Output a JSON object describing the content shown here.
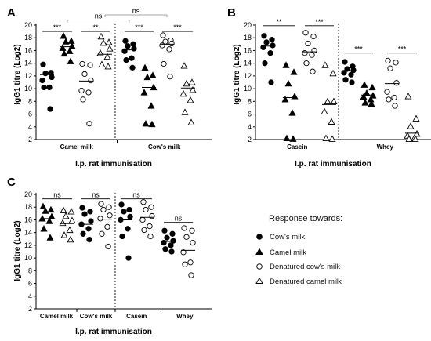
{
  "legend": {
    "title": "Response towards:",
    "items": [
      {
        "label": "Cow's milk",
        "marker": "circle-filled"
      },
      {
        "label": "Camel milk",
        "marker": "triangle-filled"
      },
      {
        "label": "Denatured cow's milk",
        "marker": "circle-open"
      },
      {
        "label": "Denatured camel milk",
        "marker": "triangle-open"
      }
    ]
  },
  "chart_data": [
    {
      "panel": "A",
      "type": "scatter",
      "ylabel": "IgG1 titre (Log2)",
      "xlabel": "I.p. rat immunisation",
      "ylim": [
        2,
        20
      ],
      "yticks": [
        2,
        4,
        6,
        8,
        10,
        12,
        14,
        16,
        18,
        20
      ],
      "groups": [
        {
          "label": "Camel milk",
          "start": 0,
          "end": 4
        },
        {
          "label": "Cow's milk",
          "start": 4,
          "end": 8
        }
      ],
      "divider_after": 4,
      "series": [
        {
          "marker": "circle-filled",
          "mean": 12.2,
          "values": [
            13.8,
            12.5,
            12.4,
            11.8,
            11.3,
            10.2,
            10.2,
            6.8
          ]
        },
        {
          "marker": "triangle-filled",
          "mean": 16.6,
          "values": [
            18.3,
            17.5,
            17.4,
            16.7,
            16.4,
            15.9,
            15.5,
            14.3
          ]
        },
        {
          "marker": "circle-open",
          "mean": 11.2,
          "values": [
            13.9,
            13.7,
            12.3,
            11.3,
            9.7,
            9.4,
            8.3,
            4.5
          ]
        },
        {
          "marker": "triangle-open",
          "mean": 15.4,
          "values": [
            18.2,
            17.3,
            17.2,
            16.3,
            15.6,
            15.0,
            13.8,
            13.5
          ]
        },
        {
          "marker": "circle-filled",
          "mean": 16.1,
          "values": [
            17.5,
            17.0,
            16.7,
            16.3,
            15.9,
            14.8,
            14.5,
            13.3
          ]
        },
        {
          "marker": "triangle-filled",
          "mean": 10.2,
          "values": [
            13.3,
            12.1,
            11.8,
            10.2,
            9.4,
            7.3,
            4.5,
            4.4
          ]
        },
        {
          "marker": "circle-open",
          "mean": 17.0,
          "values": [
            18.4,
            17.6,
            17.4,
            17.1,
            16.8,
            16.2,
            13.9,
            11.9
          ]
        },
        {
          "marker": "triangle-open",
          "mean": 10.1,
          "values": [
            13.6,
            11.0,
            10.8,
            9.8,
            9.2,
            8.2,
            6.3,
            4.7
          ]
        }
      ],
      "comparisons": [
        {
          "from": 0,
          "to": 1,
          "label": "***",
          "y": 19.0
        },
        {
          "from": 2,
          "to": 3,
          "label": "**",
          "y": 19.0
        },
        {
          "from": 4,
          "to": 5,
          "label": "***",
          "y": 19.0
        },
        {
          "from": 6,
          "to": 7,
          "label": "***",
          "y": 19.0
        },
        {
          "from": 1,
          "to": 4,
          "label": "ns",
          "y": 20.8
        },
        {
          "from": 3,
          "to": 6,
          "label": "ns",
          "y": 21.6
        }
      ]
    },
    {
      "panel": "B",
      "type": "scatter",
      "ylabel": "IgG1 titre (Log2)",
      "xlabel": "I.p. rat immunisation",
      "ylim": [
        2,
        20
      ],
      "yticks": [
        2,
        4,
        6,
        8,
        10,
        12,
        14,
        16,
        18,
        20
      ],
      "groups": [
        {
          "label": "Casein",
          "start": 0,
          "end": 4
        },
        {
          "label": "Whey",
          "start": 4,
          "end": 8
        }
      ],
      "divider_after": 4,
      "series": [
        {
          "marker": "circle-filled",
          "mean": 16.7,
          "values": [
            18.3,
            17.7,
            17.3,
            16.8,
            16.5,
            15.6,
            14.0,
            11.0
          ]
        },
        {
          "marker": "triangle-filled",
          "mean": 8.6,
          "values": [
            13.7,
            12.6,
            10.8,
            8.8,
            8.3,
            6.2,
            2.2,
            2.1
          ]
        },
        {
          "marker": "circle-open",
          "mean": 15.8,
          "values": [
            18.8,
            18.2,
            17.1,
            16.0,
            15.6,
            15.3,
            14.0,
            12.7
          ]
        },
        {
          "marker": "triangle-open",
          "mean": 7.5,
          "values": [
            13.7,
            12.4,
            8.0,
            8.0,
            6.4,
            4.8,
            2.2,
            2.1
          ]
        },
        {
          "marker": "circle-filled",
          "mean": 12.8,
          "values": [
            14.2,
            13.5,
            13.1,
            12.9,
            12.5,
            12.2,
            11.4,
            11.0
          ]
        },
        {
          "marker": "triangle-filled",
          "mean": 9.0,
          "values": [
            10.6,
            10.2,
            9.3,
            8.9,
            8.7,
            8.3,
            7.8,
            7.6
          ]
        },
        {
          "marker": "circle-open",
          "mean": 10.8,
          "values": [
            14.4,
            14.1,
            13.2,
            10.9,
            9.5,
            8.6,
            8.3,
            7.3
          ]
        },
        {
          "marker": "triangle-open",
          "mean": 3.0,
          "values": [
            8.8,
            5.3,
            4.1,
            2.9,
            2.6,
            2.3,
            2.1,
            2.1
          ]
        }
      ],
      "comparisons": [
        {
          "from": 0,
          "to": 1,
          "label": "**",
          "y": 19.9
        },
        {
          "from": 2,
          "to": 3,
          "label": "***",
          "y": 19.9
        },
        {
          "from": 4,
          "to": 5,
          "label": "***",
          "y": 15.6
        },
        {
          "from": 6,
          "to": 7,
          "label": "***",
          "y": 15.6
        }
      ]
    },
    {
      "panel": "C",
      "type": "scatter",
      "ylabel": "IgG1 titre (Log2)",
      "xlabel": "I.p. rat immunisation",
      "ylim": [
        2,
        20
      ],
      "yticks": [
        2,
        4,
        6,
        8,
        10,
        12,
        14,
        16,
        18,
        20
      ],
      "groups": [
        {
          "label": "Camel milk",
          "start": 0,
          "end": 2
        },
        {
          "label": "Cow's milk",
          "start": 2,
          "end": 4
        },
        {
          "label": "Casein",
          "start": 4,
          "end": 6
        },
        {
          "label": "Whey",
          "start": 6,
          "end": 8
        }
      ],
      "divider_after": 4,
      "series": [
        {
          "marker": "triangle-filled",
          "mean": 16.2,
          "values": [
            18.1,
            17.6,
            17.4,
            16.5,
            16.2,
            15.8,
            14.6,
            13.2
          ]
        },
        {
          "marker": "triangle-open",
          "mean": 15.4,
          "values": [
            17.5,
            17.3,
            16.6,
            15.9,
            15.5,
            14.4,
            13.6,
            12.9
          ]
        },
        {
          "marker": "circle-filled",
          "mean": 15.3,
          "values": [
            17.9,
            17.3,
            16.9,
            15.8,
            15.3,
            14.6,
            13.8,
            12.9
          ]
        },
        {
          "marker": "circle-open",
          "mean": 16.1,
          "values": [
            18.5,
            18.0,
            17.6,
            16.7,
            16.2,
            14.9,
            13.8,
            11.8
          ]
        },
        {
          "marker": "circle-filled",
          "mean": 16.0,
          "values": [
            18.4,
            17.6,
            17.3,
            16.5,
            16.0,
            14.6,
            13.4,
            10.0
          ]
        },
        {
          "marker": "circle-open",
          "mean": 16.4,
          "values": [
            18.8,
            18.0,
            17.6,
            16.6,
            16.0,
            15.0,
            14.4,
            13.4
          ]
        },
        {
          "marker": "circle-filled",
          "mean": 12.6,
          "values": [
            14.3,
            13.8,
            13.2,
            12.7,
            12.4,
            12.0,
            11.4,
            11.0
          ]
        },
        {
          "marker": "circle-open",
          "mean": 11.2,
          "values": [
            14.7,
            14.3,
            13.3,
            12.4,
            10.9,
            9.3,
            9.0,
            7.3
          ]
        }
      ],
      "comparisons": [
        {
          "from": 0,
          "to": 1,
          "label": "ns",
          "y": 19.3
        },
        {
          "from": 2,
          "to": 3,
          "label": "ns",
          "y": 19.3
        },
        {
          "from": 4,
          "to": 5,
          "label": "ns",
          "y": 19.3
        },
        {
          "from": 6,
          "to": 7,
          "label": "ns",
          "y": 15.6
        }
      ]
    }
  ]
}
